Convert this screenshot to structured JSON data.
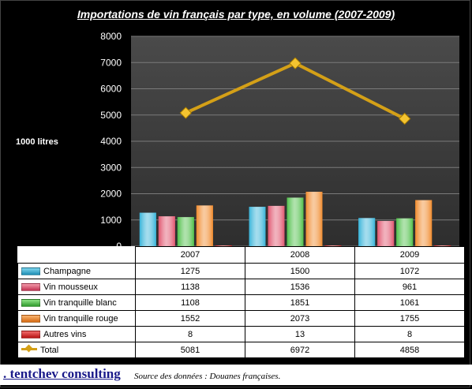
{
  "chart_data": {
    "type": "bar",
    "title": "Importations de vin français par type, en volume (2007-2009)",
    "ylabel": "1000 litres",
    "categories": [
      "2007",
      "2008",
      "2009"
    ],
    "ylim": [
      0,
      8000
    ],
    "yticks": [
      "0",
      "1000",
      "2000",
      "3000",
      "4000",
      "5000",
      "6000",
      "7000",
      "8000"
    ],
    "grid": true,
    "legend_placement": "table",
    "series": [
      {
        "name": "Champagne",
        "type": "bar",
        "color": "#37b3d8",
        "values": [
          1275,
          1500,
          1072
        ]
      },
      {
        "name": "Vin mousseux",
        "type": "bar",
        "color": "#e0556e",
        "values": [
          1138,
          1536,
          961
        ]
      },
      {
        "name": "Vin tranquille blanc",
        "type": "bar",
        "color": "#4fbf49",
        "values": [
          1108,
          1851,
          1061
        ]
      },
      {
        "name": "Vin tranquille rouge",
        "type": "bar",
        "color": "#f08a2c",
        "values": [
          1552,
          2073,
          1755
        ]
      },
      {
        "name": "Autres vins",
        "type": "bar",
        "color": "#d82424",
        "values": [
          8,
          13,
          8
        ]
      },
      {
        "name": "Total",
        "type": "line",
        "color": "#d4a017",
        "values": [
          5081,
          6972,
          4858
        ]
      }
    ]
  },
  "footer": {
    "brand": ". tentchev consulting",
    "source": "Source des données : Douanes françaises."
  }
}
